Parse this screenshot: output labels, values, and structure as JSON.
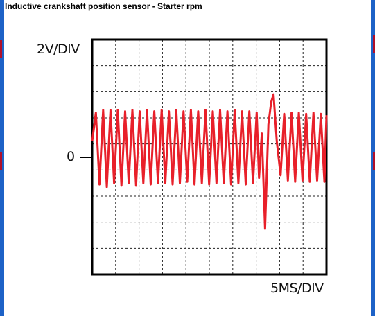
{
  "window": {
    "title": "Inductive crankshaft position sensor - Starter rpm"
  },
  "colors": {
    "frame": "#1d62c7",
    "background": "#ffffff",
    "trace": "#e8202a",
    "grid": "#222222",
    "edge_marks": "#b0102a"
  },
  "chart_data": {
    "type": "line",
    "title": "Inductive crankshaft position sensor - Starter rpm",
    "ylabel": "2V/DIV",
    "xlabel": "5MS/DIV",
    "zero_label": "0",
    "divisions": {
      "x": 10,
      "y": 9
    },
    "x_units": "ms",
    "y_units": "V",
    "x_per_div": 5,
    "y_per_div": 2,
    "zero_level_div_from_top": 4,
    "xlim": [
      0,
      50
    ],
    "ylim": [
      -10,
      8
    ],
    "grid": true,
    "series": [
      {
        "color": "#e8202a",
        "x": [
          0.0,
          0.78,
          1.56,
          2.34,
          3.12,
          3.9,
          4.68,
          5.46,
          6.24,
          7.02,
          7.8,
          8.58,
          9.36,
          10.14,
          10.92,
          11.7,
          12.48,
          13.26,
          14.04,
          14.82,
          15.6,
          16.38,
          17.16,
          17.94,
          18.72,
          19.5,
          20.28,
          21.06,
          21.84,
          22.62,
          23.4,
          24.18,
          24.96,
          25.74,
          26.52,
          27.3,
          28.08,
          28.86,
          29.64,
          30.42,
          31.2,
          31.98,
          32.76,
          33.54,
          34.32,
          35.1,
          35.6,
          36.2,
          36.9,
          37.6,
          38.2,
          38.7,
          39.4,
          40.2,
          40.98,
          41.76,
          42.54,
          43.32,
          44.1,
          44.88,
          45.66,
          46.44,
          47.22,
          48.0,
          48.78,
          49.56,
          50.0
        ],
        "y": [
          0.2,
          2.4,
          -3.1,
          2.6,
          -3.3,
          2.6,
          -3.0,
          2.6,
          -3.2,
          2.5,
          -3.0,
          2.6,
          -3.2,
          2.5,
          -3.0,
          2.6,
          -3.1,
          2.5,
          -3.0,
          2.6,
          -3.0,
          2.5,
          -3.1,
          2.6,
          -3.0,
          2.5,
          -2.9,
          2.6,
          -3.1,
          2.5,
          -3.0,
          2.6,
          -3.1,
          2.5,
          -3.0,
          2.6,
          -3.0,
          2.5,
          -3.1,
          2.6,
          -3.0,
          2.5,
          -3.1,
          2.5,
          -3.0,
          2.4,
          -2.6,
          0.8,
          -6.5,
          1.5,
          3.2,
          3.8,
          0.2,
          -2.4,
          2.3,
          -2.8,
          2.4,
          -2.9,
          2.4,
          -2.8,
          2.3,
          -2.9,
          2.4,
          -2.8,
          2.3,
          -2.9,
          2.2
        ]
      }
    ]
  }
}
